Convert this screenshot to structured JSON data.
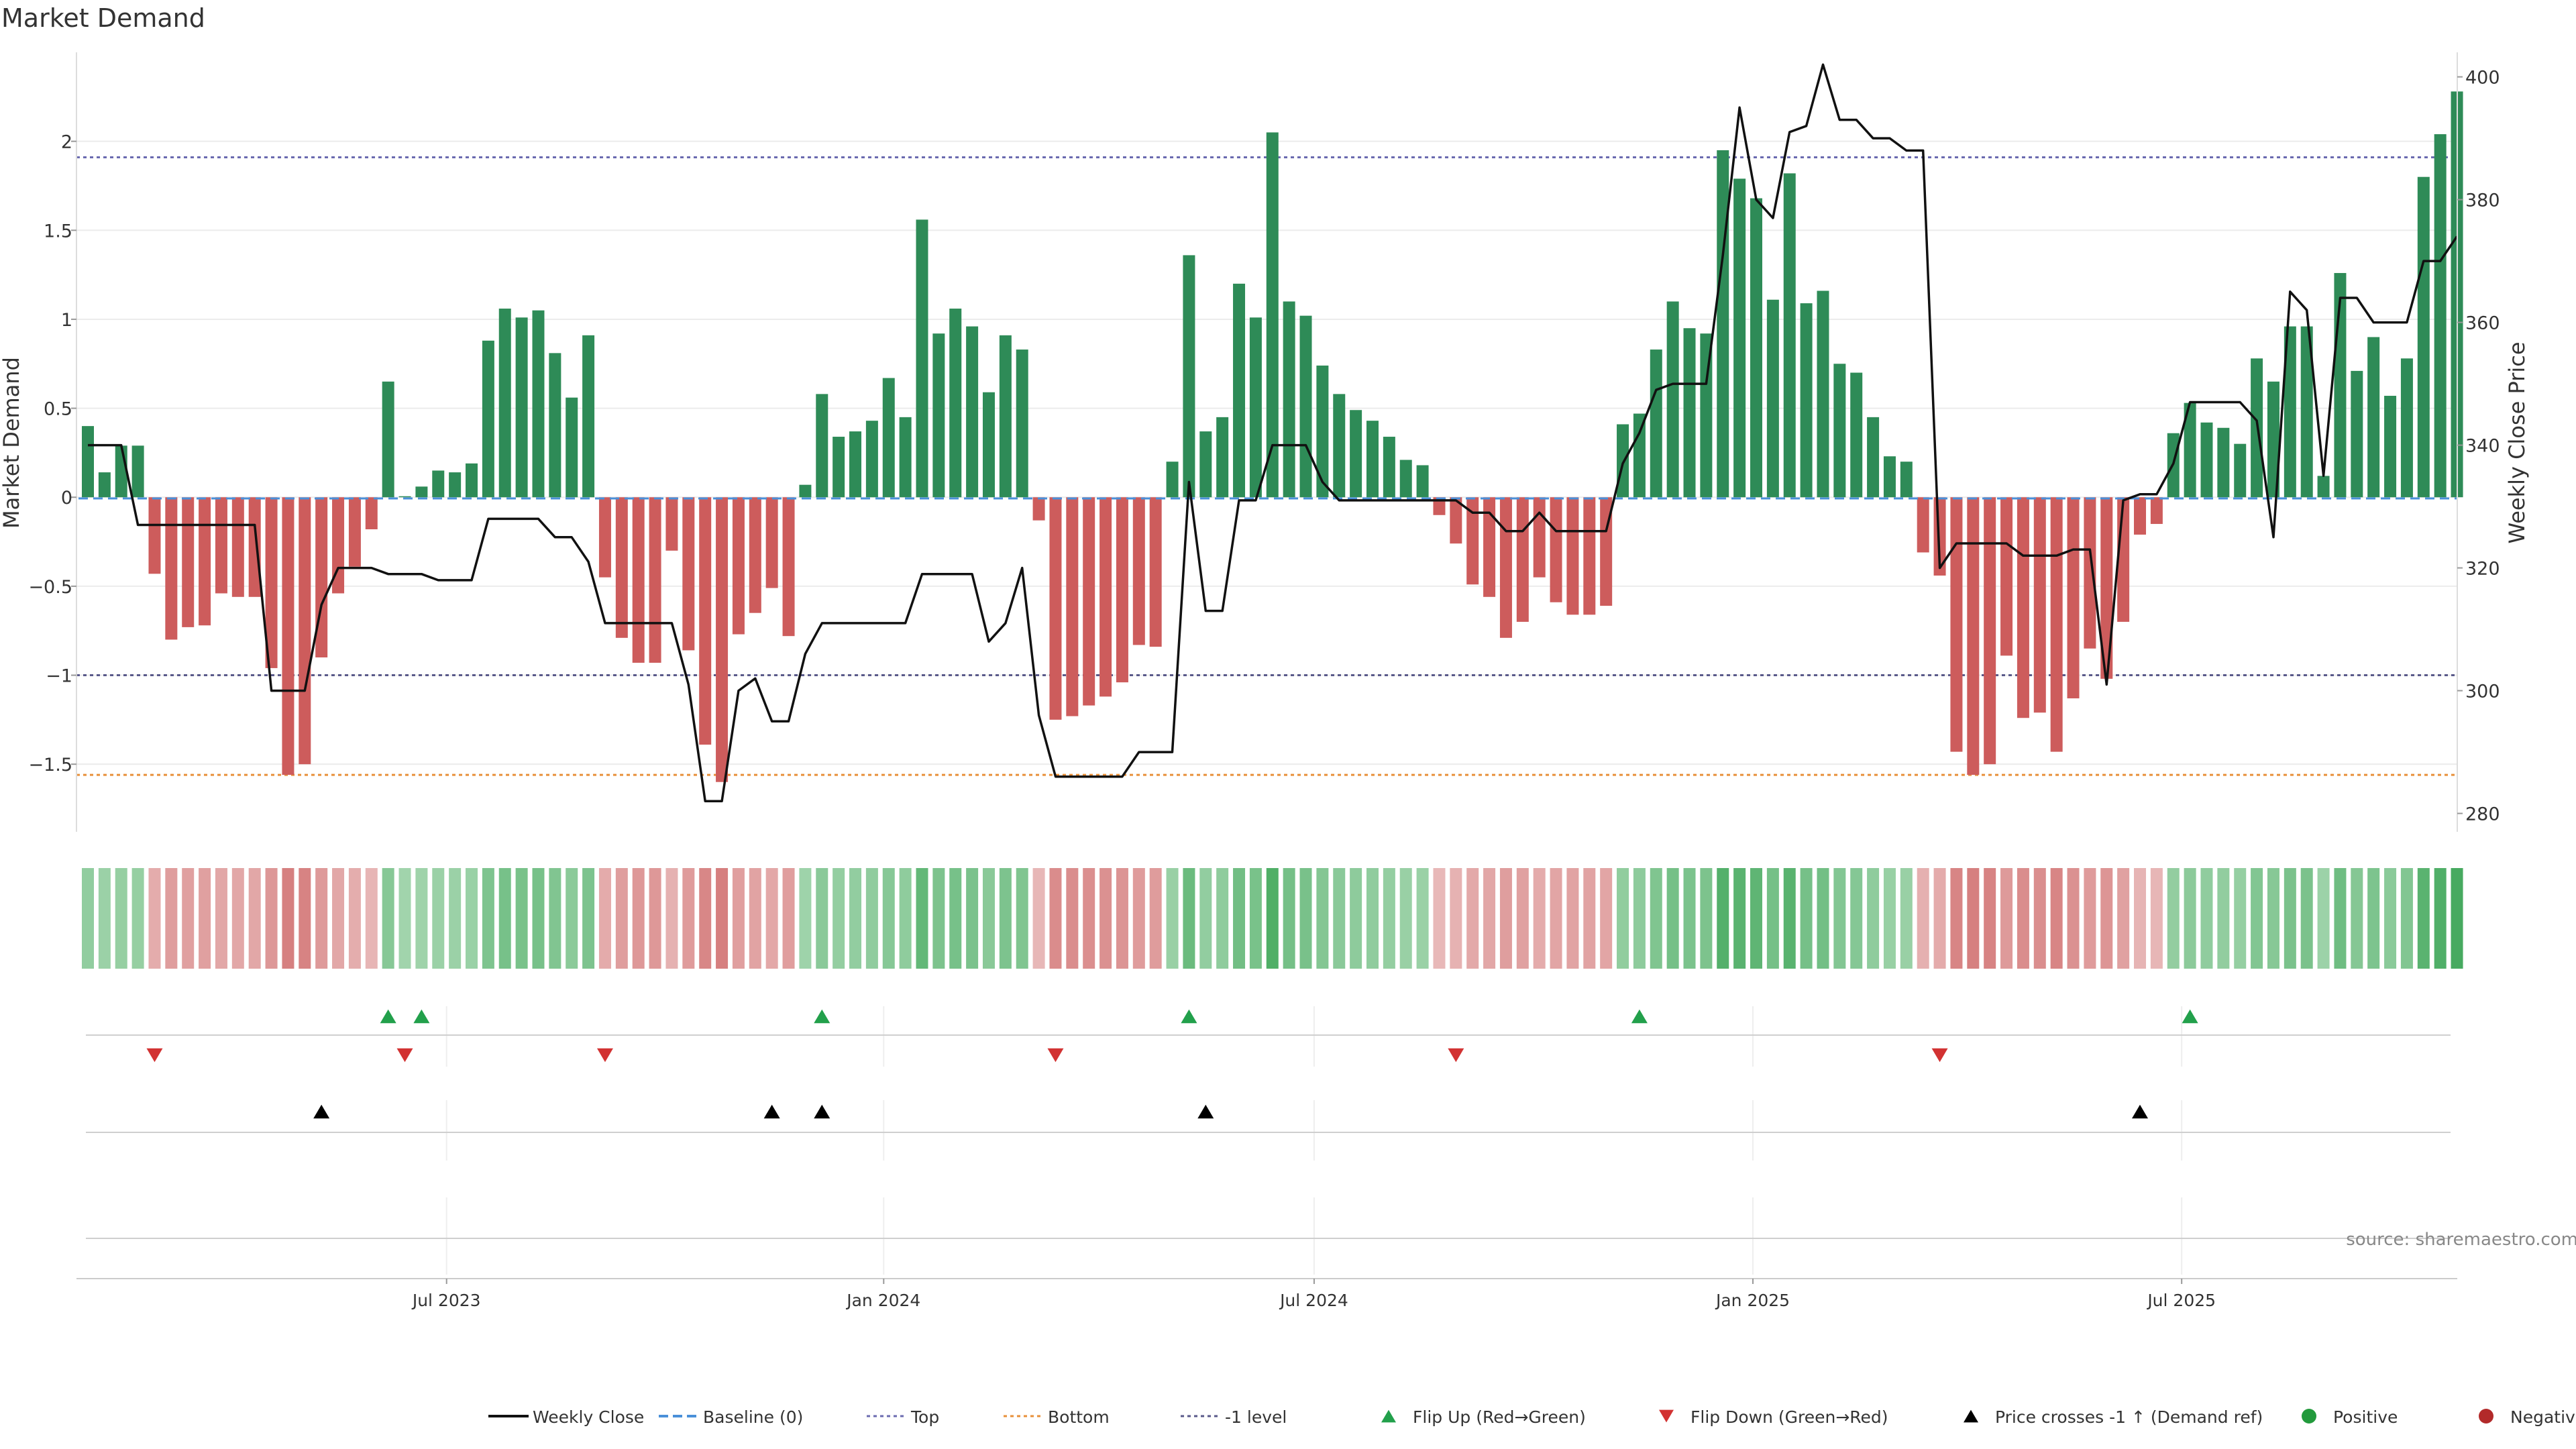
{
  "chart_data": {
    "type": "bar",
    "title": "Market Demand",
    "ylabel_left": "Market Demand",
    "ylabel_right": "Weekly Close Price",
    "ylim_left": [
      -1.88,
      2.5
    ],
    "ylim_right": [
      277,
      404
    ],
    "left_ticks": [
      {
        "value": 2,
        "label": "2"
      },
      {
        "value": 1.5,
        "label": "1.5"
      },
      {
        "value": 1,
        "label": "1"
      },
      {
        "value": 0.5,
        "label": "0.5"
      },
      {
        "value": 0,
        "label": "0"
      },
      {
        "value": -0.5,
        "label": "−0.5"
      },
      {
        "value": -1,
        "label": "−1"
      },
      {
        "value": -1.5,
        "label": "−1.5"
      }
    ],
    "right_ticks": [
      {
        "value": 400,
        "label": "400"
      },
      {
        "value": 380,
        "label": "380"
      },
      {
        "value": 360,
        "label": "360"
      },
      {
        "value": 340,
        "label": "340"
      },
      {
        "value": 320,
        "label": "320"
      },
      {
        "value": 300,
        "label": "300"
      },
      {
        "value": 280,
        "label": "280"
      }
    ],
    "time_ticks": [
      {
        "index": 21.5,
        "label": "Jul 2023"
      },
      {
        "index": 47.7,
        "label": "Jan 2024"
      },
      {
        "index": 73.5,
        "label": "Jul 2024"
      },
      {
        "index": 99.8,
        "label": "Jan 2025"
      },
      {
        "index": 125.5,
        "label": "Jul 2025"
      }
    ],
    "reference_lines": [
      {
        "name": "Top",
        "value": 1.91,
        "color": "#6b6bb0"
      },
      {
        "name": "Bottom",
        "value": -1.56,
        "color": "#e8903a"
      },
      {
        "name": "-1 level",
        "value": -1.0,
        "color": "#5a5a8a"
      }
    ],
    "demand": [
      0.4,
      0.14,
      0.29,
      0.29,
      -0.43,
      -0.8,
      -0.73,
      -0.72,
      -0.54,
      -0.56,
      -0.56,
      -0.96,
      -1.56,
      -1.5,
      -0.9,
      -0.54,
      -0.39,
      -0.18,
      0.65,
      0.0,
      0.06,
      0.15,
      0.14,
      0.19,
      0.88,
      1.06,
      1.01,
      1.05,
      0.81,
      0.56,
      0.91,
      -0.45,
      -0.79,
      -0.93,
      -0.93,
      -0.3,
      -0.86,
      -1.39,
      -1.6,
      -0.77,
      -0.65,
      -0.51,
      -0.78,
      0.07,
      0.58,
      0.34,
      0.37,
      0.43,
      0.67,
      0.45,
      1.56,
      0.92,
      1.06,
      0.96,
      0.59,
      0.91,
      0.83,
      -0.13,
      -1.25,
      -1.23,
      -1.17,
      -1.12,
      -1.04,
      -0.83,
      -0.84,
      0.2,
      1.36,
      0.37,
      0.45,
      1.2,
      1.01,
      2.05,
      1.1,
      1.02,
      0.74,
      0.58,
      0.49,
      0.43,
      0.34,
      0.21,
      0.18,
      -0.1,
      -0.26,
      -0.49,
      -0.56,
      -0.79,
      -0.7,
      -0.45,
      -0.59,
      -0.66,
      -0.66,
      -0.61,
      0.41,
      0.47,
      0.83,
      1.1,
      0.95,
      0.92,
      1.95,
      1.79,
      1.68,
      1.11,
      1.82,
      1.09,
      1.16,
      0.75,
      0.7,
      0.45,
      0.23,
      0.2,
      -0.31,
      -0.44,
      -1.43,
      -1.56,
      -1.5,
      -0.89,
      -1.24,
      -1.21,
      -1.43,
      -1.13,
      -0.85,
      -1.02,
      -0.7,
      -0.21,
      -0.15,
      0.36,
      0.53,
      0.42,
      0.39,
      0.3,
      0.78,
      0.65,
      0.96,
      0.96,
      0.12,
      1.26,
      0.71,
      0.9,
      0.57,
      0.78,
      1.8,
      2.04,
      2.28
    ],
    "weekly_close": [
      340,
      340,
      340,
      327,
      327,
      327,
      327,
      327,
      327,
      327,
      327,
      300,
      300,
      300,
      314,
      320,
      320,
      320,
      319,
      319,
      319,
      318,
      318,
      318,
      328,
      328,
      328,
      328,
      325,
      325,
      321,
      311,
      311,
      311,
      311,
      311,
      301,
      282,
      282,
      300,
      302,
      295,
      295,
      306,
      311,
      311,
      311,
      311,
      311,
      311,
      319,
      319,
      319,
      319,
      308,
      311,
      320,
      296,
      286,
      286,
      286,
      286,
      286,
      290,
      290,
      290,
      334,
      313,
      313,
      331,
      331,
      340,
      340,
      340,
      334,
      331,
      331,
      331,
      331,
      331,
      331,
      331,
      331,
      329,
      329,
      326,
      326,
      329,
      326,
      326,
      326,
      326,
      337,
      342,
      349,
      350,
      350,
      350,
      371,
      395,
      380,
      377,
      391,
      392,
      402,
      393,
      393,
      390,
      390,
      388,
      388,
      320,
      324,
      324,
      324,
      324,
      322,
      322,
      322,
      323,
      323,
      301,
      331,
      332,
      332,
      337,
      347,
      347,
      347,
      347,
      344,
      325,
      365,
      362,
      335,
      364,
      364,
      360,
      360,
      360,
      370,
      370,
      374
    ],
    "markers": {
      "flip_up_indices": [
        18,
        20,
        44,
        66,
        93,
        126
      ],
      "flip_down_indices": [
        4,
        19,
        31,
        58,
        82,
        111
      ],
      "price_cross_indices": [
        14,
        41,
        44,
        67,
        123
      ]
    },
    "legend": [
      {
        "label": "Weekly Close",
        "kind": "line",
        "color": "#111111"
      },
      {
        "label": "Baseline (0)",
        "kind": "dash",
        "color": "#4a90d9"
      },
      {
        "label": "Top",
        "kind": "dot",
        "color": "#6b6bb0"
      },
      {
        "label": "Bottom",
        "kind": "dot",
        "color": "#e8903a"
      },
      {
        "label": "-1 level",
        "kind": "dot",
        "color": "#5a5a8a"
      },
      {
        "label": "Flip Up (Red→Green)",
        "kind": "tri-up",
        "color": "#22a04b"
      },
      {
        "label": "Flip Down (Green→Red)",
        "kind": "tri-down",
        "color": "#d23232"
      },
      {
        "label": "Price crosses -1 ↑ (Demand ref)",
        "kind": "tri-up",
        "color": "#000000"
      },
      {
        "label": "Positive",
        "kind": "circle",
        "color": "#229a3c"
      },
      {
        "label": "Negative",
        "kind": "circle",
        "color": "#b22a2a"
      }
    ],
    "colors": {
      "positive_bar": "#2e8b57",
      "negative_bar": "#cd5c5c",
      "flip_up": "#22a04b",
      "flip_down": "#d23232",
      "price_cross": "#000000",
      "close_line": "#111111"
    }
  },
  "source_text": "source: sharemaestro.com"
}
